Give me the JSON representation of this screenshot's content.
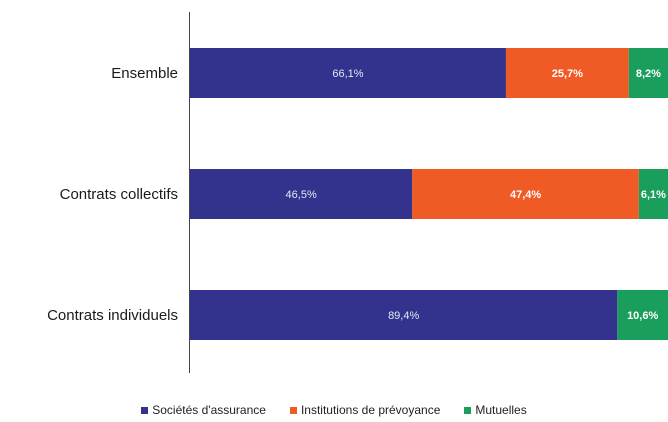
{
  "chart_data": {
    "type": "bar",
    "orientation": "horizontal",
    "stacked": true,
    "percent": true,
    "categories": [
      "Ensemble",
      "Contrats collectifs",
      "Contrats individuels"
    ],
    "series": [
      {
        "name": "Sociétés d'assurance",
        "color": "#33338e",
        "values": [
          66.1,
          46.5,
          89.4
        ],
        "labels": [
          "66,1%",
          "46,5%",
          "89,4%"
        ]
      },
      {
        "name": "Institutions de prévoyance",
        "color": "#f05a24",
        "values": [
          25.7,
          47.4,
          0
        ],
        "labels": [
          "25,7%",
          "47,4%",
          ""
        ]
      },
      {
        "name": "Mutuelles",
        "color": "#1a9e5c",
        "values": [
          8.2,
          6.1,
          10.6
        ],
        "labels": [
          "8,2%",
          "6,1%",
          "10,6%"
        ]
      }
    ],
    "xlim": [
      0,
      100
    ],
    "grid": false,
    "legend_position": "bottom"
  }
}
